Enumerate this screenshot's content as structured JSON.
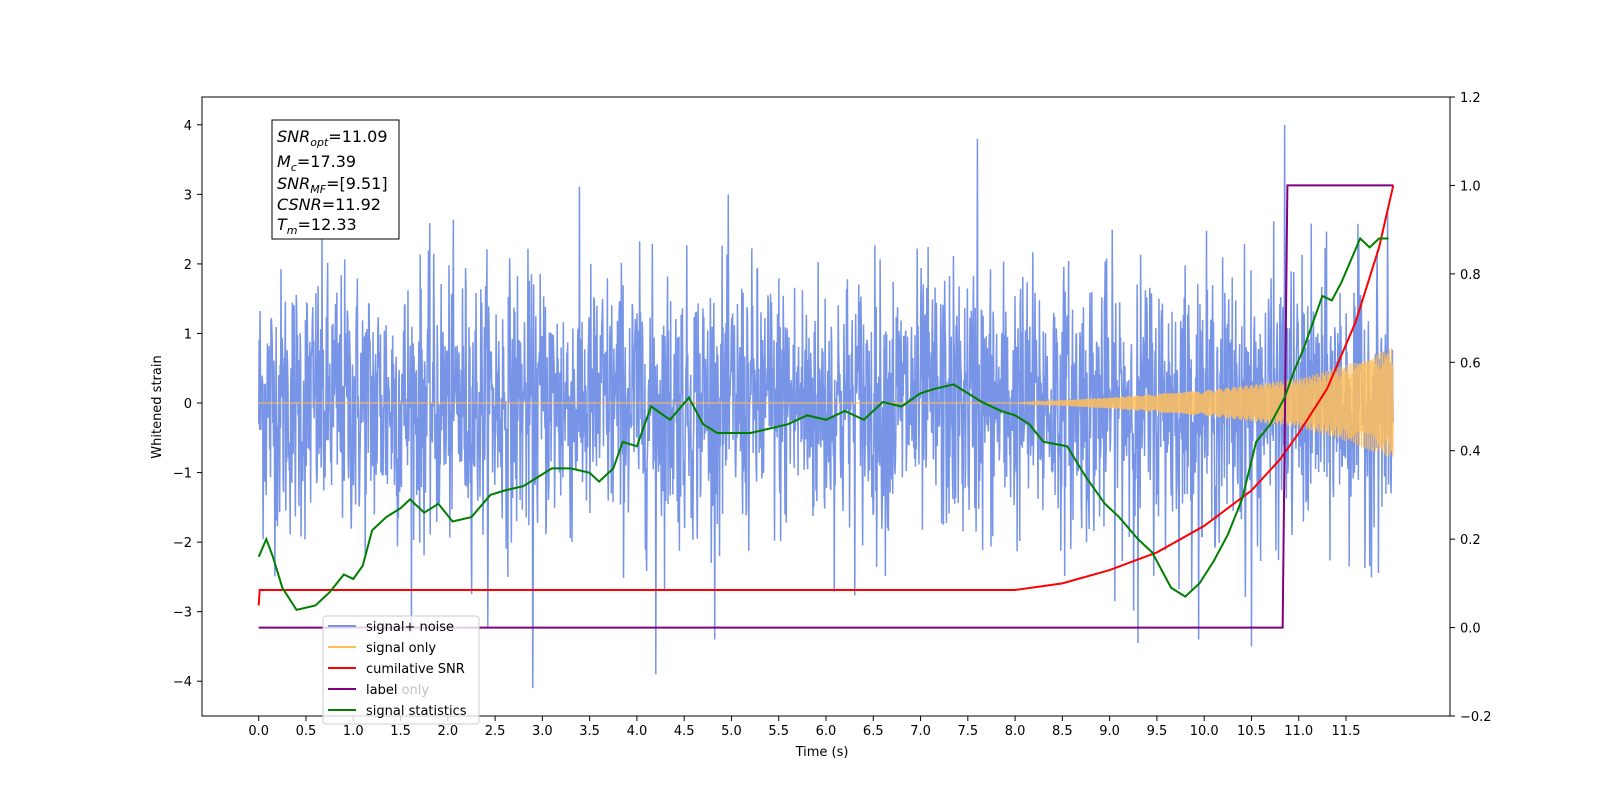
{
  "chart_data": {
    "type": "line",
    "xlabel": "Time (s)",
    "ylabel": "Whitened strain",
    "xlim": [
      -0.6,
      12.6
    ],
    "ylim": [
      -4.5,
      4.4
    ],
    "y2lim": [
      -0.2,
      1.2
    ],
    "xticks": [
      0.0,
      0.5,
      1.0,
      1.5,
      2.0,
      2.5,
      3.0,
      3.5,
      4.0,
      4.5,
      5.0,
      5.5,
      6.0,
      6.5,
      7.0,
      7.5,
      8.0,
      8.5,
      9.0,
      9.5,
      10.0,
      10.5,
      11.0,
      11.5
    ],
    "yticks": [
      -4,
      -3,
      -2,
      -1,
      0,
      1,
      2,
      3,
      4
    ],
    "y2ticks": [
      -0.2,
      0.0,
      0.2,
      0.4,
      0.6,
      0.8,
      1.0,
      1.2
    ],
    "grid": false,
    "legend_position": "lower-left",
    "annotation": {
      "lines": [
        {
          "base": "SNR",
          "sub": "opt",
          "value": "=11.09"
        },
        {
          "base": "M",
          "sub": "c",
          "value": "=17.39"
        },
        {
          "base": "SNR",
          "sub": "MF",
          "value": "=[9.51]"
        },
        {
          "base": "CSNR",
          "sub": "",
          "value": "=11.92"
        },
        {
          "base": "T",
          "sub": "m",
          "value": "=12.33"
        }
      ]
    },
    "legend_labels": {
      "signal_noise": "signal+ noise",
      "signal_only": "signal only",
      "cumulative_snr": "cumilative SNR",
      "label": "label",
      "label_only": "label only",
      "signal_statistics": "signal statistics"
    },
    "series": [
      {
        "key": "signal_noise",
        "name": "signal+ noise",
        "axis": "left",
        "color": "#7794e6",
        "x_range": [
          0.0,
          12.0
        ],
        "envelope": [
          -2.0,
          2.0
        ],
        "peak_max": 4.0,
        "peak_min": -4.1,
        "notable_peaks": [
          [
            10.85,
            4.0
          ],
          [
            7.6,
            3.8
          ],
          [
            2.9,
            -4.1
          ],
          [
            4.2,
            -3.9
          ],
          [
            9.3,
            -3.45
          ],
          [
            10.5,
            -3.5
          ]
        ]
      },
      {
        "key": "signal_only",
        "name": "signal only",
        "axis": "left",
        "color": "#ffbe5c",
        "x_range": [
          0.0,
          12.0
        ],
        "amplitude_growth": [
          [
            8.0,
            0.0
          ],
          [
            9.0,
            0.08
          ],
          [
            10.0,
            0.18
          ],
          [
            11.0,
            0.35
          ],
          [
            11.5,
            0.55
          ],
          [
            12.0,
            0.8
          ]
        ]
      },
      {
        "key": "cumulative_snr",
        "name": "cumilative SNR",
        "axis": "right",
        "color": "#ff0000",
        "x": [
          0.0,
          0.01,
          0.5,
          8.0,
          8.5,
          9.0,
          9.5,
          10.0,
          10.5,
          10.8,
          11.0,
          11.3,
          11.6,
          11.85,
          12.0
        ],
        "y": [
          0.05,
          0.085,
          0.085,
          0.085,
          0.1,
          0.13,
          0.17,
          0.23,
          0.31,
          0.38,
          0.44,
          0.54,
          0.69,
          0.86,
          1.0
        ]
      },
      {
        "key": "label",
        "name": "label",
        "axis": "right",
        "color": "#800080",
        "x": [
          0.0,
          10.83,
          10.88,
          12.0
        ],
        "y": [
          0.0,
          0.0,
          1.0,
          1.0
        ]
      },
      {
        "key": "signal_statistics",
        "name": "signal statistics",
        "axis": "right",
        "color": "#007f00",
        "x": [
          0.0,
          0.08,
          0.15,
          0.25,
          0.4,
          0.6,
          0.75,
          0.9,
          1.0,
          1.1,
          1.2,
          1.35,
          1.5,
          1.6,
          1.75,
          1.9,
          2.05,
          2.25,
          2.45,
          2.6,
          2.8,
          2.95,
          3.1,
          3.3,
          3.5,
          3.6,
          3.75,
          3.85,
          4.0,
          4.15,
          4.35,
          4.55,
          4.7,
          4.85,
          5.0,
          5.2,
          5.4,
          5.6,
          5.8,
          6.0,
          6.2,
          6.4,
          6.6,
          6.8,
          7.0,
          7.15,
          7.35,
          7.5,
          7.65,
          7.85,
          8.0,
          8.15,
          8.3,
          8.55,
          8.75,
          8.95,
          9.1,
          9.3,
          9.45,
          9.65,
          9.8,
          9.95,
          10.1,
          10.25,
          10.4,
          10.55,
          10.7,
          10.85,
          10.95,
          11.05,
          11.15,
          11.25,
          11.35,
          11.45,
          11.55,
          11.65,
          11.75,
          11.85,
          11.95
        ],
        "y": [
          0.16,
          0.2,
          0.16,
          0.09,
          0.04,
          0.05,
          0.08,
          0.12,
          0.11,
          0.14,
          0.22,
          0.25,
          0.27,
          0.29,
          0.26,
          0.28,
          0.24,
          0.25,
          0.3,
          0.31,
          0.32,
          0.34,
          0.36,
          0.36,
          0.35,
          0.33,
          0.36,
          0.42,
          0.41,
          0.5,
          0.47,
          0.52,
          0.46,
          0.44,
          0.44,
          0.44,
          0.45,
          0.46,
          0.48,
          0.47,
          0.49,
          0.47,
          0.51,
          0.5,
          0.53,
          0.54,
          0.55,
          0.53,
          0.51,
          0.49,
          0.48,
          0.46,
          0.42,
          0.41,
          0.34,
          0.28,
          0.25,
          0.2,
          0.17,
          0.09,
          0.07,
          0.1,
          0.15,
          0.21,
          0.29,
          0.42,
          0.46,
          0.52,
          0.58,
          0.63,
          0.69,
          0.75,
          0.74,
          0.78,
          0.83,
          0.88,
          0.86,
          0.88,
          0.88
        ]
      }
    ]
  }
}
